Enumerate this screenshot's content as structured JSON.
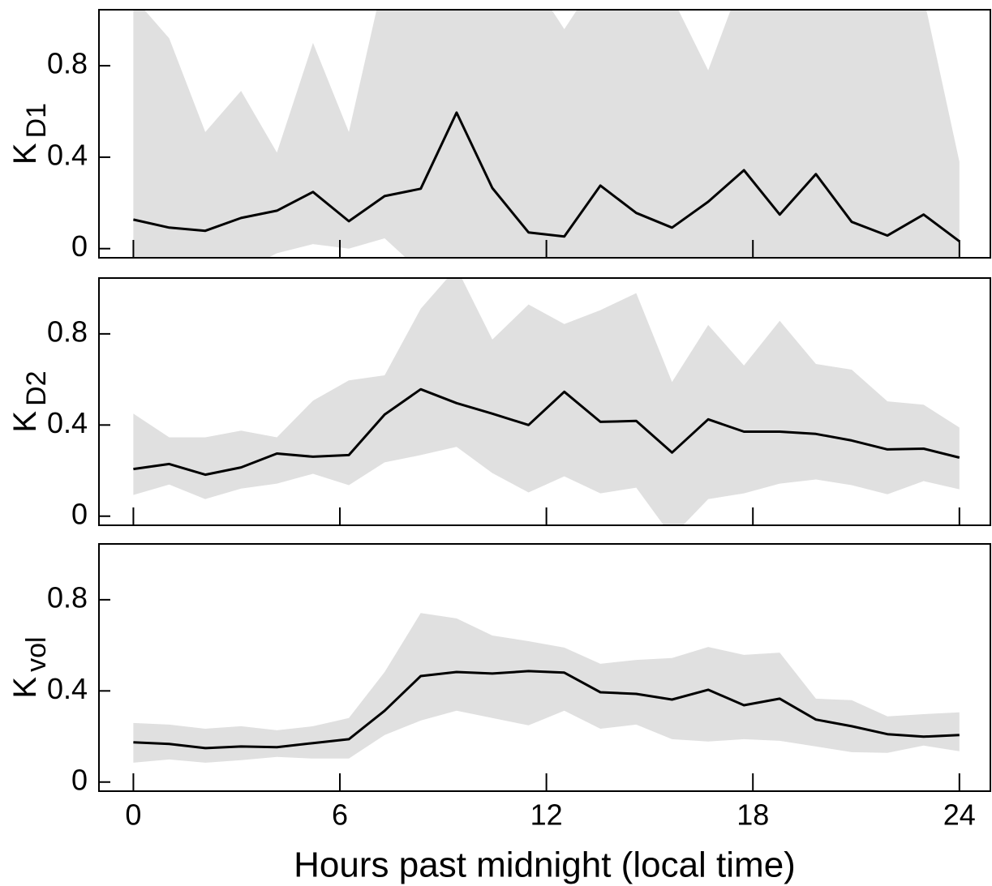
{
  "chart_data": [
    {
      "type": "line",
      "ylabel": "K",
      "ylabel_sub": "D1",
      "x": [
        0,
        1.04,
        2.09,
        3.13,
        4.17,
        5.22,
        6.26,
        7.3,
        8.35,
        9.39,
        10.43,
        11.48,
        12.52,
        13.57,
        14.61,
        15.65,
        16.7,
        17.74,
        18.78,
        19.83,
        20.87,
        21.91,
        22.96,
        24
      ],
      "values": [
        0.127,
        0.092,
        0.078,
        0.134,
        0.166,
        0.248,
        0.12,
        0.23,
        0.262,
        0.595,
        0.265,
        0.071,
        0.053,
        0.276,
        0.156,
        0.092,
        0.205,
        0.343,
        0.149,
        0.326,
        0.117,
        0.057,
        0.149,
        0.032
      ],
      "upper": [
        1.1,
        0.92,
        0.51,
        0.69,
        0.42,
        0.9,
        0.51,
        1.2,
        1.4,
        1.5,
        1.3,
        1.2,
        0.96,
        1.2,
        1.2,
        1.1,
        0.78,
        1.2,
        1.3,
        1.3,
        1.3,
        1.2,
        1.1,
        0.38
      ],
      "lower": [
        -0.1,
        -0.1,
        -0.1,
        -0.1,
        -0.02,
        0.02,
        0.0,
        0.045,
        -0.1,
        -0.2,
        -0.2,
        -0.2,
        -0.2,
        -0.2,
        -0.2,
        -0.2,
        -0.2,
        -0.2,
        -0.2,
        -0.2,
        -0.2,
        -0.2,
        -0.2,
        -0.2
      ],
      "color": "#000000",
      "band_color": "#e0e0e0",
      "xlim": [
        -1,
        24.9
      ],
      "xticks": [
        0,
        6,
        12,
        18,
        24
      ],
      "show_xtick_labels": false,
      "ylim": [
        -0.04,
        1.045
      ],
      "yticks": [
        0,
        0.4,
        0.8
      ]
    },
    {
      "type": "line",
      "ylabel": "K",
      "ylabel_sub": "D2",
      "x": [
        0,
        1.04,
        2.09,
        3.13,
        4.17,
        5.22,
        6.26,
        7.3,
        8.35,
        9.39,
        10.43,
        11.48,
        12.52,
        13.57,
        14.61,
        15.65,
        16.7,
        17.74,
        18.78,
        19.83,
        20.87,
        21.91,
        22.96,
        24
      ],
      "values": [
        0.207,
        0.229,
        0.182,
        0.214,
        0.275,
        0.261,
        0.268,
        0.446,
        0.557,
        0.496,
        0.45,
        0.4,
        0.546,
        0.414,
        0.418,
        0.279,
        0.425,
        0.371,
        0.371,
        0.361,
        0.332,
        0.293,
        0.296,
        0.257
      ],
      "upper": [
        0.45,
        0.346,
        0.346,
        0.375,
        0.346,
        0.507,
        0.596,
        0.618,
        0.91,
        1.09,
        0.775,
        0.929,
        0.843,
        0.904,
        0.979,
        0.589,
        0.839,
        0.661,
        0.857,
        0.668,
        0.643,
        0.504,
        0.489,
        0.389
      ],
      "lower": [
        0.093,
        0.139,
        0.075,
        0.121,
        0.143,
        0.186,
        0.136,
        0.236,
        0.268,
        0.304,
        0.189,
        0.104,
        0.175,
        0.1,
        0.125,
        -0.09,
        0.075,
        0.1,
        0.143,
        0.161,
        0.136,
        0.096,
        0.154,
        0.118
      ],
      "color": "#000000",
      "band_color": "#e0e0e0",
      "xlim": [
        -1,
        24.9
      ],
      "xticks": [
        0,
        6,
        12,
        18,
        24
      ],
      "show_xtick_labels": false,
      "ylim": [
        -0.04,
        1.045
      ],
      "yticks": [
        0,
        0.4,
        0.8
      ]
    },
    {
      "type": "line",
      "ylabel": "K",
      "ylabel_sub": "vol",
      "xlabel": "Hours past midnight (local time)",
      "x": [
        0,
        1.04,
        2.09,
        3.13,
        4.17,
        5.22,
        6.26,
        7.3,
        8.35,
        9.39,
        10.43,
        11.48,
        12.52,
        13.57,
        14.61,
        15.65,
        16.7,
        17.74,
        18.78,
        19.83,
        20.87,
        21.91,
        22.96,
        24
      ],
      "values": [
        0.174,
        0.167,
        0.149,
        0.156,
        0.153,
        0.171,
        0.188,
        0.313,
        0.465,
        0.483,
        0.476,
        0.487,
        0.48,
        0.394,
        0.387,
        0.362,
        0.405,
        0.337,
        0.366,
        0.274,
        0.245,
        0.21,
        0.199,
        0.206
      ],
      "upper": [
        0.259,
        0.252,
        0.234,
        0.245,
        0.227,
        0.245,
        0.281,
        0.483,
        0.742,
        0.718,
        0.643,
        0.618,
        0.59,
        0.519,
        0.536,
        0.544,
        0.593,
        0.558,
        0.568,
        0.366,
        0.359,
        0.288,
        0.298,
        0.306
      ],
      "lower": [
        0.085,
        0.099,
        0.085,
        0.096,
        0.11,
        0.103,
        0.103,
        0.206,
        0.27,
        0.313,
        0.281,
        0.249,
        0.313,
        0.234,
        0.252,
        0.188,
        0.178,
        0.188,
        0.181,
        0.156,
        0.131,
        0.128,
        0.16,
        0.135
      ],
      "color": "#000000",
      "band_color": "#e0e0e0",
      "xlim": [
        -1,
        24.9
      ],
      "xticks": [
        0,
        6,
        12,
        18,
        24
      ],
      "show_xtick_labels": true,
      "ylim": [
        -0.04,
        1.045
      ],
      "yticks": [
        0,
        0.4,
        0.8
      ]
    }
  ]
}
